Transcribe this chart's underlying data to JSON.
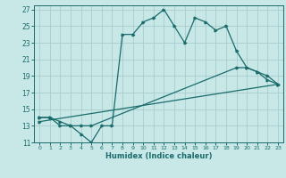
{
  "xlabel": "Humidex (Indice chaleur)",
  "bg_color": "#c8e8e8",
  "grid_color": "#a8cccc",
  "line_color": "#1a6b6b",
  "xlim": [
    -0.5,
    23.5
  ],
  "ylim": [
    11,
    27.5
  ],
  "xticks": [
    0,
    1,
    2,
    3,
    4,
    5,
    6,
    7,
    8,
    9,
    10,
    11,
    12,
    13,
    14,
    15,
    16,
    17,
    18,
    19,
    20,
    21,
    22,
    23
  ],
  "yticks": [
    11,
    13,
    15,
    17,
    19,
    21,
    23,
    25,
    27
  ],
  "line1_x": [
    0,
    1,
    2,
    3,
    4,
    5,
    6,
    7,
    8,
    9,
    10,
    11,
    12,
    13,
    14,
    15,
    16,
    17,
    18,
    19,
    20,
    21,
    22,
    23
  ],
  "line1_y": [
    14,
    14,
    13,
    13,
    12,
    11,
    13,
    13,
    24,
    24,
    25.5,
    26,
    27,
    25,
    23,
    26,
    25.5,
    24.5,
    25,
    22,
    20,
    19.5,
    18.5,
    18
  ],
  "line2_x": [
    0,
    1,
    2,
    3,
    4,
    5,
    19,
    20,
    21,
    22,
    23
  ],
  "line2_y": [
    14,
    14,
    13.5,
    13,
    13,
    13,
    20,
    20,
    19.5,
    19,
    18
  ],
  "line3_x": [
    0,
    23
  ],
  "line3_y": [
    13.5,
    18
  ]
}
